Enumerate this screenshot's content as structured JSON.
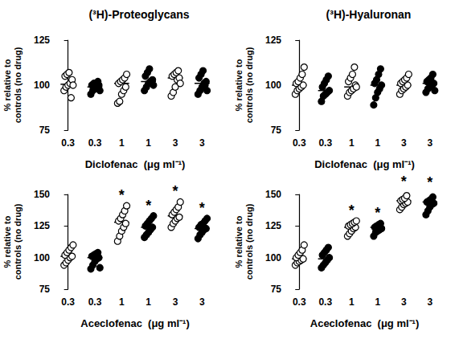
{
  "chart_data": [
    {
      "type": "scatter",
      "title": "(³H)-Proteoglycans",
      "xlabel": "Diclofenac  (μg ml⁻¹)",
      "ylabel": "% relative to\ncontrols (no drug)",
      "ylim": [
        75,
        125
      ],
      "yticks": [
        75,
        100,
        125
      ],
      "grid": false,
      "color": "#000000",
      "categories": [
        "0.3",
        "0.3",
        "1",
        "1",
        "3",
        "3"
      ],
      "markers": [
        "open",
        "filled",
        "open",
        "filled",
        "open",
        "filled"
      ],
      "points": [
        [
          97,
          99,
          100,
          101,
          103,
          105,
          106,
          107,
          93,
          100
        ],
        [
          95,
          97,
          98,
          99,
          100,
          100,
          101,
          101,
          102,
          97
        ],
        [
          90,
          91,
          95,
          97,
          99,
          101,
          102,
          103,
          104,
          106
        ],
        [
          97,
          99,
          101,
          102,
          103,
          105,
          107,
          109,
          102,
          100
        ],
        [
          94,
          96,
          99,
          103,
          104,
          105,
          106,
          107,
          108,
          101
        ],
        [
          95,
          97,
          99,
          101,
          102,
          104,
          106,
          108,
          100,
          97
        ]
      ],
      "medians": [
        100.5,
        99,
        101,
        102,
        104,
        101
      ]
    },
    {
      "type": "scatter",
      "title": "(³H)-Hyaluronan",
      "xlabel": "Diclofenac  (μg ml⁻¹)",
      "ylabel": "% relative to\ncontrols (no drug)",
      "ylim": [
        75,
        125
      ],
      "yticks": [
        75,
        100,
        125
      ],
      "grid": false,
      "color": "#000000",
      "categories": [
        "0.3",
        "0.3",
        "1",
        "1",
        "3",
        "3"
      ],
      "markers": [
        "open",
        "filled",
        "open",
        "filled",
        "open",
        "filled"
      ],
      "points": [
        [
          95,
          97,
          98,
          99,
          100,
          101,
          102,
          104,
          106,
          110
        ],
        [
          91,
          94,
          95,
          96,
          97,
          99,
          101,
          103,
          105
        ],
        [
          94,
          96,
          97,
          98,
          100,
          102,
          104,
          106,
          110,
          99
        ],
        [
          89,
          93,
          96,
          98,
          100,
          101,
          103,
          106,
          109
        ],
        [
          95,
          97,
          98,
          99,
          100,
          101,
          102,
          103,
          104,
          106
        ],
        [
          96,
          98,
          99,
          100,
          101,
          102,
          103,
          104,
          106,
          97
        ]
      ],
      "medians": [
        100,
        97,
        99,
        100,
        100,
        101
      ]
    },
    {
      "type": "scatter",
      "xlabel": "Aceclofenac  (μg ml⁻¹)",
      "ylabel": "% relative to\ncontrols (no drug)",
      "ylim": [
        75,
        150
      ],
      "yticks": [
        75,
        100,
        125,
        150
      ],
      "grid": false,
      "color": "#000000",
      "categories": [
        "0.3",
        "0.3",
        "1",
        "1",
        "3",
        "3"
      ],
      "markers": [
        "open",
        "filled",
        "open",
        "filled",
        "open",
        "filled"
      ],
      "points": [
        [
          94,
          96,
          98,
          100,
          101,
          102,
          104,
          106,
          108,
          110
        ],
        [
          91,
          94,
          97,
          99,
          100,
          101,
          102,
          103,
          104,
          92
        ],
        [
          113,
          117,
          121,
          124,
          127,
          129,
          131,
          134,
          137,
          141
        ],
        [
          116,
          118,
          120,
          122,
          124,
          125,
          127,
          129,
          131,
          133
        ],
        [
          124,
          127,
          129,
          131,
          132,
          134,
          136,
          138,
          140,
          144
        ],
        [
          115,
          118,
          120,
          122,
          123,
          124,
          126,
          127,
          129,
          131
        ]
      ],
      "medians": [
        101,
        100,
        128,
        124,
        133,
        123
      ],
      "annotations": [
        null,
        null,
        "*",
        "*",
        "*",
        "*"
      ]
    },
    {
      "type": "scatter",
      "xlabel": "Aceclofenac  (μg ml⁻¹)",
      "ylabel": "% relative to\ncontrols (no drug)",
      "ylim": [
        75,
        150
      ],
      "yticks": [
        75,
        100,
        125,
        150
      ],
      "grid": false,
      "color": "#000000",
      "categories": [
        "0.3",
        "0.3",
        "1",
        "1",
        "3",
        "3"
      ],
      "markers": [
        "open",
        "filled",
        "open",
        "filled",
        "open",
        "filled"
      ],
      "points": [
        [
          94,
          96,
          97,
          98,
          99,
          100,
          102,
          104,
          106,
          110
        ],
        [
          92,
          94,
          96,
          98,
          100,
          102,
          104,
          106,
          108
        ],
        [
          117,
          119,
          121,
          123,
          124,
          125,
          126,
          127,
          128,
          129
        ],
        [
          117,
          120,
          121,
          122,
          123,
          124,
          125,
          126,
          127
        ],
        [
          138,
          140,
          142,
          143,
          144,
          145,
          146,
          147,
          149,
          152
        ],
        [
          134,
          137,
          140,
          142,
          143,
          144,
          145,
          146,
          148,
          151
        ]
      ],
      "medians": [
        99,
        99,
        124,
        124,
        145,
        144
      ],
      "annotations": [
        null,
        null,
        "*",
        "*",
        "*",
        "*"
      ]
    }
  ]
}
